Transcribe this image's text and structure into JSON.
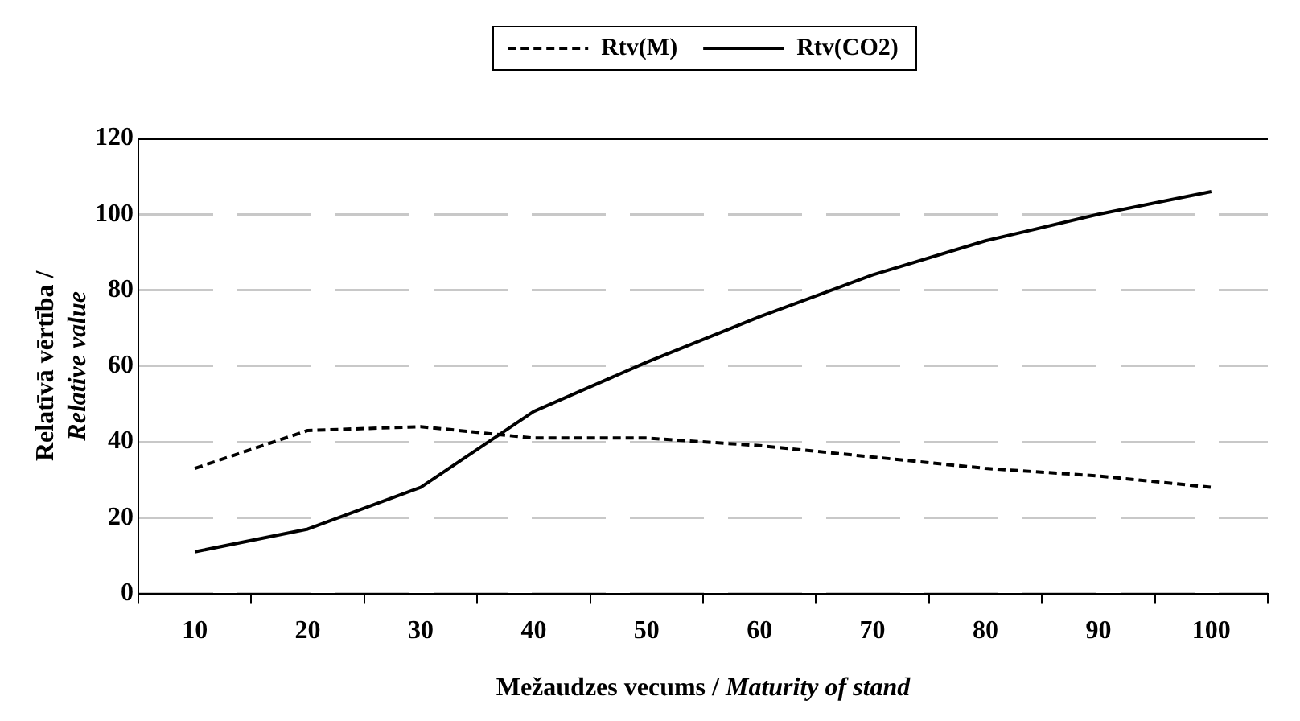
{
  "chart_data": {
    "type": "line",
    "xlabel": "Mežaudzes vecums / Maturity of stand",
    "ylabel": "Relatīvā vērtība / Relative value",
    "categories": [
      "10",
      "20",
      "30",
      "40",
      "50",
      "60",
      "70",
      "80",
      "90",
      "100"
    ],
    "series": [
      {
        "name": "Rtv(M)",
        "color": "#000000",
        "line_style": "dashed",
        "values": [
          33,
          43,
          44,
          41,
          41,
          39,
          36,
          33,
          31,
          28
        ]
      },
      {
        "name": "Rtv(CO2)",
        "color": "#000000",
        "line_style": "solid",
        "values": [
          11,
          17,
          28,
          48,
          61,
          73,
          84,
          93,
          100,
          106
        ]
      }
    ],
    "ylim": [
      0,
      120
    ],
    "yticks": [
      0,
      20,
      40,
      60,
      80,
      100,
      120
    ],
    "grid": "y",
    "legend": "top",
    "marker": "none"
  }
}
